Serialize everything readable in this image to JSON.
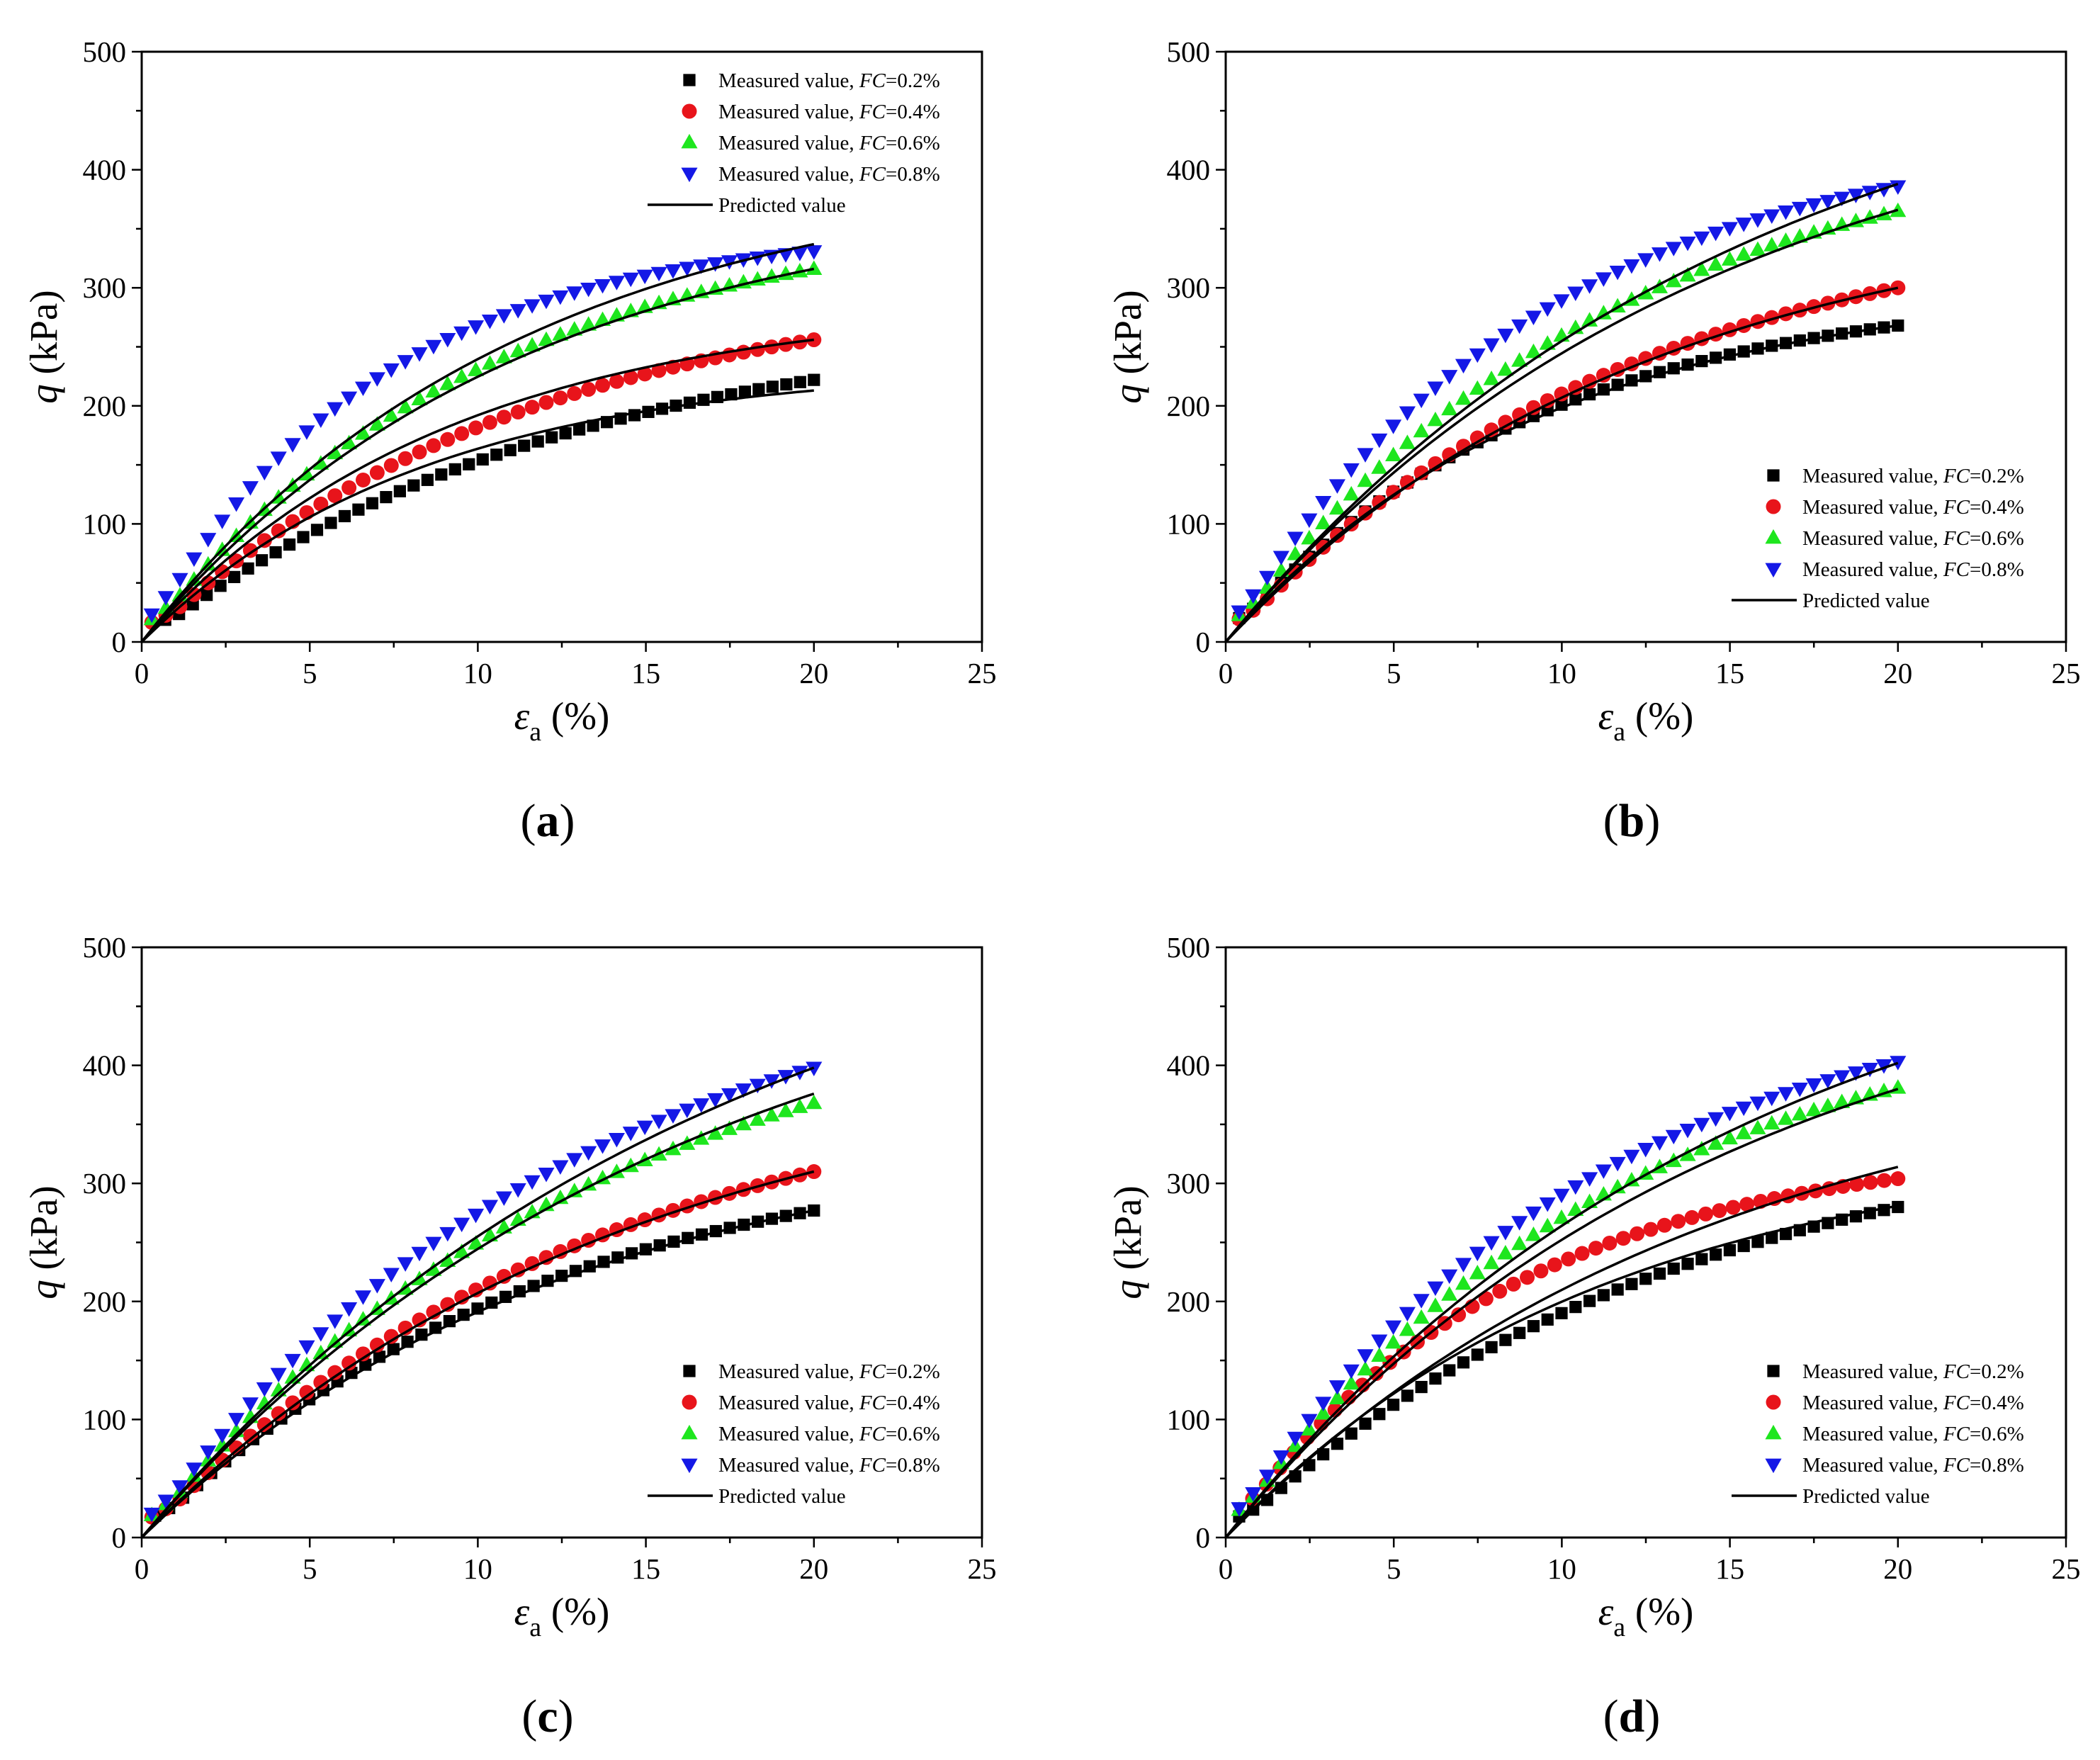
{
  "figure": {
    "labels": {
      "series": [
        "Measured value, ",
        "Measured value, ",
        "Measured value, ",
        "Measured value, "
      ],
      "series_param": [
        "FC",
        "FC",
        "FC",
        "FC"
      ],
      "series_value": [
        "=0.2%",
        "=0.4%",
        "=0.6%",
        "=0.8%"
      ],
      "predicted": "Predicted value",
      "ylabel_sym": "q",
      "ylabel_unit": " (kPa)",
      "xlabel_sym": "ε",
      "xlabel_sub": "a",
      "xlabel_unit": " (%)"
    },
    "colors": {
      "FC=0.2%": "#000000",
      "FC=0.4%": "#e8141b",
      "FC=0.6%": "#1ee61e",
      "FC=0.8%": "#1418e6",
      "predicted": "#000000"
    },
    "markers": [
      "square",
      "circle",
      "triangle-up",
      "triangle-down"
    ]
  },
  "chart_data": [
    {
      "panel": "(a)",
      "caption_open": "(",
      "caption_letter": "a",
      "caption_close": ")",
      "type": "scatter+line",
      "xlim": [
        0,
        25
      ],
      "ylim": [
        0,
        500
      ],
      "xticks": [
        0,
        5,
        10,
        15,
        20,
        25
      ],
      "yticks": [
        0,
        100,
        200,
        300,
        400,
        500
      ],
      "xlabel": "εa (%)",
      "ylabel": "q (kPa)",
      "legend": "top-right",
      "measured": [
        {
          "name": "Measured value, FC=0.2%",
          "qmax": 222,
          "k": 0.08,
          "x0": 0.7
        },
        {
          "name": "Measured value, FC=0.4%",
          "qmax": 256,
          "k": 0.09,
          "x0": 0.3
        },
        {
          "name": "Measured value, FC=0.6%",
          "qmax": 316,
          "k": 0.1,
          "x0": 0.3
        },
        {
          "name": "Measured value, FC=0.8%",
          "qmax": 331,
          "k": 0.145,
          "x0": 0.3
        }
      ],
      "predicted": [
        {
          "name": "Predicted value",
          "qmax": 213,
          "k": 0.12
        },
        {
          "name": "Predicted value",
          "qmax": 256,
          "k": 0.11
        },
        {
          "name": "Predicted value",
          "qmax": 316,
          "k": 0.09
        },
        {
          "name": "Predicted value",
          "qmax": 337,
          "k": 0.09
        }
      ]
    },
    {
      "panel": "(b)",
      "caption_open": "(",
      "caption_letter": "b",
      "caption_close": ")",
      "type": "scatter+line",
      "xlim": [
        0,
        25
      ],
      "ylim": [
        0,
        500
      ],
      "xticks": [
        0,
        5,
        10,
        15,
        20,
        25
      ],
      "yticks": [
        0,
        100,
        200,
        300,
        400,
        500
      ],
      "xlabel": "εa (%)",
      "ylabel": "q (kPa)",
      "legend": "bottom-right",
      "measured": [
        {
          "name": "Measured value, FC=0.2%",
          "qmax": 268,
          "k": 0.11,
          "x0": 0.4
        },
        {
          "name": "Measured value, FC=0.4%",
          "qmax": 300,
          "k": 0.085,
          "x0": 0.4
        },
        {
          "name": "Measured value, FC=0.6%",
          "qmax": 365,
          "k": 0.09,
          "x0": 0.4
        },
        {
          "name": "Measured value, FC=0.8%",
          "qmax": 386,
          "k": 0.11,
          "x0": 0.4
        }
      ],
      "predicted": [
        {
          "name": "Predicted value",
          "qmax": 268,
          "k": 0.105
        },
        {
          "name": "Predicted value",
          "qmax": 300,
          "k": 0.08
        },
        {
          "name": "Predicted value",
          "qmax": 366,
          "k": 0.07
        },
        {
          "name": "Predicted value",
          "qmax": 388,
          "k": 0.065
        }
      ]
    },
    {
      "panel": "(c)",
      "caption_open": "(",
      "caption_letter": "c",
      "caption_close": ")",
      "type": "scatter+line",
      "xlim": [
        0,
        25
      ],
      "ylim": [
        0,
        500
      ],
      "xticks": [
        0,
        5,
        10,
        15,
        20,
        25
      ],
      "yticks": [
        0,
        100,
        200,
        300,
        400,
        500
      ],
      "xlabel": "εa (%)",
      "ylabel": "q (kPa)",
      "legend": "bottom-right",
      "measured": [
        {
          "name": "Measured value, FC=0.2%",
          "qmax": 277,
          "k": 0.085,
          "x0": 0.4
        },
        {
          "name": "Measured value, FC=0.4%",
          "qmax": 310,
          "k": 0.075,
          "x0": 0.3
        },
        {
          "name": "Measured value, FC=0.6%",
          "qmax": 368,
          "k": 0.075,
          "x0": 0.3
        },
        {
          "name": "Measured value, FC=0.8%",
          "qmax": 398,
          "k": 0.08,
          "x0": 0.3
        }
      ],
      "predicted": [
        {
          "name": "Predicted value",
          "qmax": 277,
          "k": 0.08
        },
        {
          "name": "Predicted value",
          "qmax": 310,
          "k": 0.07
        },
        {
          "name": "Predicted value",
          "qmax": 376,
          "k": 0.062
        },
        {
          "name": "Predicted value",
          "qmax": 398,
          "k": 0.058
        }
      ]
    },
    {
      "panel": "(d)",
      "caption_open": "(",
      "caption_letter": "d",
      "caption_close": ")",
      "type": "scatter+line",
      "xlim": [
        0,
        25
      ],
      "ylim": [
        0,
        500
      ],
      "xticks": [
        0,
        5,
        10,
        15,
        20,
        25
      ],
      "yticks": [
        0,
        100,
        200,
        300,
        400,
        500
      ],
      "xlabel": "εa (%)",
      "ylabel": "q (kPa)",
      "legend": "bottom-right",
      "measured": [
        {
          "name": "Measured value, FC=0.2%",
          "qmax": 280,
          "k": 0.075,
          "x0": 0.4
        },
        {
          "name": "Measured value, FC=0.4%",
          "qmax": 304,
          "k": 0.12,
          "x0": 0.8
        },
        {
          "name": "Measured value, FC=0.6%",
          "qmax": 381,
          "k": 0.09,
          "x0": 0.4
        },
        {
          "name": "Measured value, FC=0.8%",
          "qmax": 403,
          "k": 0.095,
          "x0": 0.4
        }
      ],
      "predicted": [
        {
          "name": "Predicted value",
          "qmax": 281,
          "k": 0.09
        },
        {
          "name": "Predicted value",
          "qmax": 314,
          "k": 0.07
        },
        {
          "name": "Predicted value",
          "qmax": 380,
          "k": 0.068
        },
        {
          "name": "Predicted value",
          "qmax": 402,
          "k": 0.065
        }
      ]
    }
  ]
}
